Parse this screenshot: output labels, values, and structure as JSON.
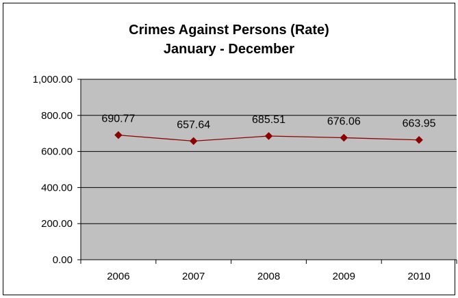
{
  "chart_data": {
    "type": "line",
    "title": "Crimes Against Persons (Rate)",
    "subtitle": "January - December",
    "categories": [
      "2006",
      "2007",
      "2008",
      "2009",
      "2010"
    ],
    "series": [
      {
        "values": [
          690.77,
          657.64,
          685.51,
          676.06,
          663.95
        ],
        "color": "#8B0000"
      }
    ],
    "data_labels": [
      "690.77",
      "657.64",
      "685.51",
      "676.06",
      "663.95"
    ],
    "y_tick_labels": [
      "0.00",
      "200.00",
      "400.00",
      "600.00",
      "800.00",
      "1,000.00"
    ],
    "ylim": [
      0,
      1000
    ],
    "y_tick_step": 200,
    "grid": true,
    "plot_background": "#c0c0c0",
    "marker": "diamond"
  }
}
